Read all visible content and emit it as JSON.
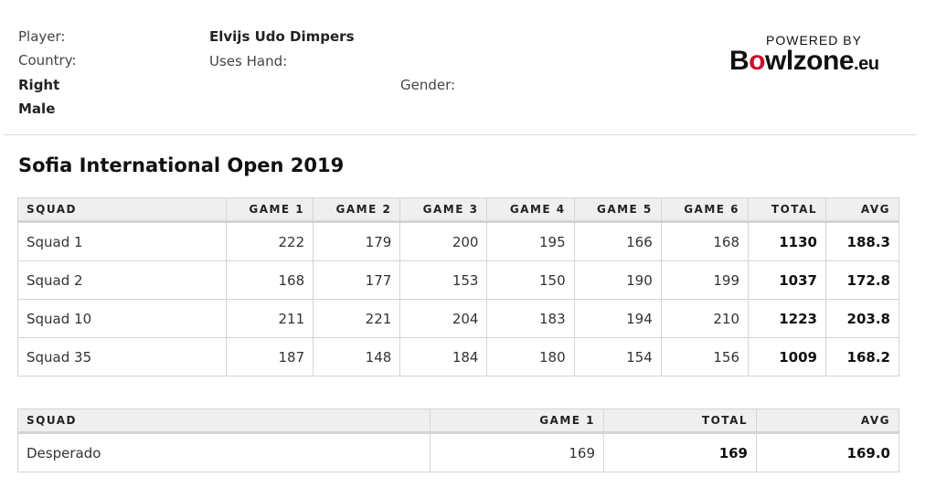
{
  "player": {
    "player_label": "Player:",
    "player_name": "Elvijs Udo Dimpers",
    "country_label": "Country:",
    "uses_hand_label": "Uses Hand:",
    "hand_value": "Right",
    "gender_label": "Gender:",
    "gender_value": "Male"
  },
  "logo": {
    "powered_by": "POWERED BY",
    "brand_b": "B",
    "brand_ball": "o",
    "brand_rest": "wlzone",
    "brand_tld": ".eu",
    "colors": {
      "ball": "#c8102e",
      "text": "#111111"
    }
  },
  "event": {
    "title": "Sofia International Open 2019"
  },
  "squads_table": {
    "headers": [
      "SQUAD",
      "GAME 1",
      "GAME 2",
      "GAME 3",
      "GAME 4",
      "GAME 5",
      "GAME 6",
      "TOTAL",
      "AVG"
    ],
    "rows": [
      [
        "Squad 1",
        "222",
        "179",
        "200",
        "195",
        "166",
        "168",
        "1130",
        "188.3"
      ],
      [
        "Squad 2",
        "168",
        "177",
        "153",
        "150",
        "190",
        "199",
        "1037",
        "172.8"
      ],
      [
        "Squad 10",
        "211",
        "221",
        "204",
        "183",
        "194",
        "210",
        "1223",
        "203.8"
      ],
      [
        "Squad 35",
        "187",
        "148",
        "184",
        "180",
        "154",
        "156",
        "1009",
        "168.2"
      ]
    ]
  },
  "finals_table": {
    "headers": [
      "SQUAD",
      "GAME 1",
      "TOTAL",
      "AVG"
    ],
    "rows": [
      [
        "Desperado",
        "169",
        "169",
        "169.0"
      ]
    ]
  }
}
